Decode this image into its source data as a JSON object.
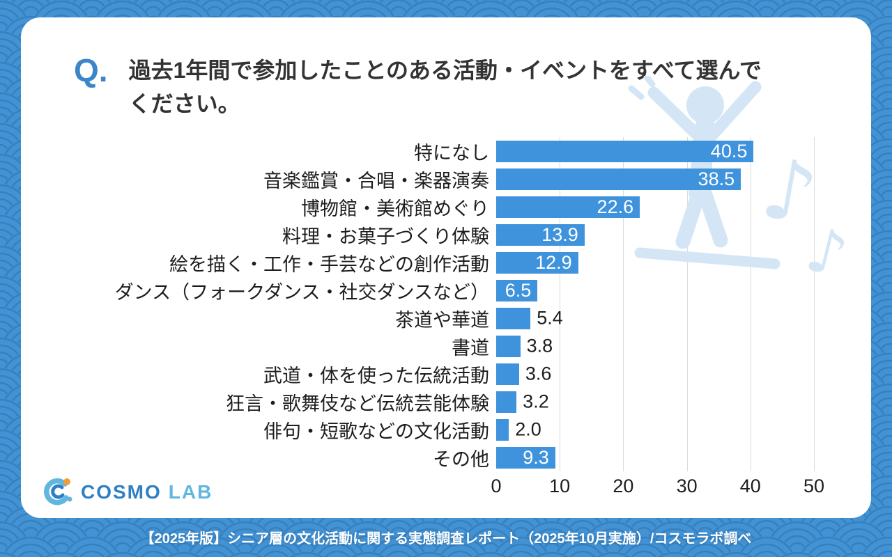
{
  "colors": {
    "accent_blue": "#3a86c8",
    "bar_blue": "#3f93dc",
    "frame_blue": "#4392d3",
    "wave_line_blue": "#2f7ab8",
    "watermark_blue": "#d4e6f5",
    "logo_blue": "#2e7fc4",
    "logo_teal": "#5fb7df",
    "logo_orange": "#f29b38"
  },
  "question": {
    "prefix": "Q.",
    "lines": [
      "過去1年間で参加したことのある活動・イベントをすべて選んで",
      "ください。"
    ]
  },
  "chart_data": {
    "type": "bar",
    "orientation": "horizontal",
    "title": "過去1年間で参加したことのある活動・イベントをすべて選んでください。",
    "categories": [
      "特になし",
      "音楽鑑賞・合唱・楽器演奏",
      "博物館・美術館めぐり",
      "料理・お菓子づくり体験",
      "絵を描く・工作・手芸などの創作活動",
      "ダンス（フォークダンス・社交ダンスなど）",
      "茶道や華道",
      "書道",
      "武道・体を使った伝統活動",
      "狂言・歌舞伎など伝統芸能体験",
      "俳句・短歌などの文化活動",
      "その他"
    ],
    "values": [
      40.5,
      38.5,
      22.6,
      13.9,
      12.9,
      6.5,
      5.4,
      3.8,
      3.6,
      3.2,
      2.0,
      9.3
    ],
    "value_labels": [
      "40.5",
      "38.5",
      "22.6",
      "13.9",
      "12.9",
      "6.5",
      "5.4",
      "3.8",
      "3.6",
      "3.2",
      "2.0",
      "9.3"
    ],
    "xlim": [
      0,
      50
    ],
    "x_ticks": [
      0,
      10,
      20,
      30,
      40,
      50
    ],
    "x_tick_labels": [
      "0",
      "10",
      "20",
      "30",
      "40",
      "50"
    ],
    "grid": true,
    "legend": false,
    "value_label_inside_threshold": 6
  },
  "watermark": {
    "description": "dancing person with music notes",
    "notes": [
      "♪",
      "♪"
    ]
  },
  "logo": {
    "brand": "COSMO",
    "suffix": "LAB"
  },
  "footer": {
    "text": "【2025年版】シニア層の文化活動に関する実態調査レポート（2025年10月実施）/コスモラボ調べ"
  }
}
